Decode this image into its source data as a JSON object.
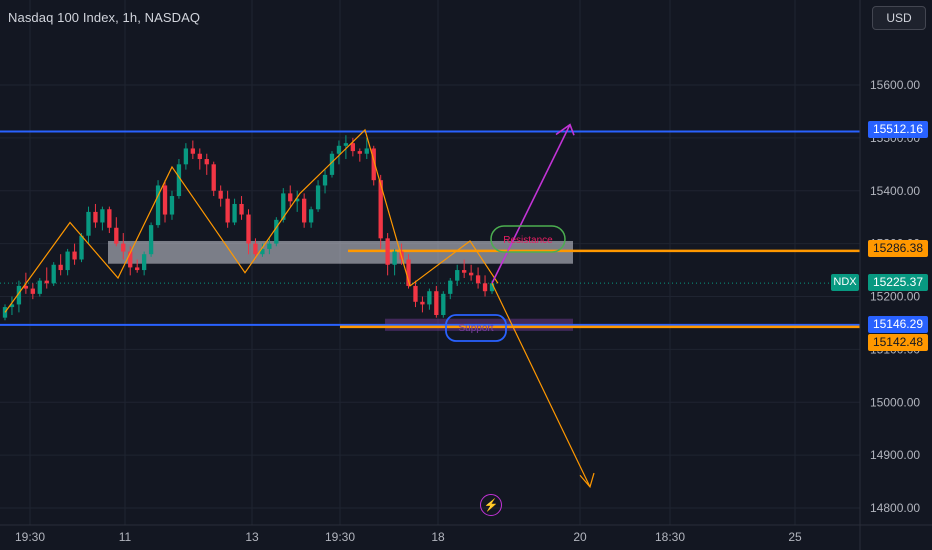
{
  "header": {
    "title": "Nasdaq 100 Index, 1h, NASDAQ",
    "currency": "USD"
  },
  "chart_data": {
    "type": "candlestick",
    "title": "Nasdaq 100 Index, 1h, NASDAQ",
    "ylim": [
      14760,
      15680
    ],
    "y_ticks": [
      14800,
      14900,
      15000,
      15100,
      15200,
      15300,
      15400,
      15500,
      15600
    ],
    "y_tick_labels": [
      "14800.00",
      "14900.00",
      "15000.00",
      "15100.00",
      "15200.00",
      "15300.00",
      "15400.00",
      "15500.00",
      "15600.00"
    ],
    "x_tick_labels": [
      "19:30",
      "11",
      "13",
      "19:30",
      "18",
      "20",
      "18:30",
      "25"
    ],
    "grid": true,
    "candles": [
      [
        15160,
        15185,
        15155,
        15180
      ],
      [
        15180,
        15200,
        15165,
        15185
      ],
      [
        15185,
        15230,
        15170,
        15220
      ],
      [
        15220,
        15245,
        15205,
        15215
      ],
      [
        15215,
        15225,
        15195,
        15205
      ],
      [
        15205,
        15235,
        15200,
        15230
      ],
      [
        15230,
        15255,
        15215,
        15225
      ],
      [
        15225,
        15265,
        15220,
        15260
      ],
      [
        15260,
        15280,
        15240,
        15250
      ],
      [
        15250,
        15290,
        15240,
        15285
      ],
      [
        15285,
        15300,
        15260,
        15270
      ],
      [
        15270,
        15320,
        15265,
        15315
      ],
      [
        15315,
        15370,
        15300,
        15360
      ],
      [
        15360,
        15375,
        15330,
        15340
      ],
      [
        15340,
        15370,
        15325,
        15365
      ],
      [
        15365,
        15370,
        15320,
        15330
      ],
      [
        15330,
        15350,
        15295,
        15300
      ],
      [
        15300,
        15320,
        15270,
        15285
      ],
      [
        15285,
        15295,
        15240,
        15255
      ],
      [
        15255,
        15270,
        15245,
        15250
      ],
      [
        15250,
        15285,
        15240,
        15280
      ],
      [
        15280,
        15340,
        15275,
        15335
      ],
      [
        15335,
        15420,
        15330,
        15410
      ],
      [
        15410,
        15420,
        15340,
        15355
      ],
      [
        15355,
        15400,
        15345,
        15390
      ],
      [
        15390,
        15460,
        15385,
        15450
      ],
      [
        15450,
        15490,
        15440,
        15480
      ],
      [
        15480,
        15495,
        15460,
        15470
      ],
      [
        15470,
        15480,
        15440,
        15460
      ],
      [
        15460,
        15470,
        15430,
        15450
      ],
      [
        15450,
        15455,
        15390,
        15400
      ],
      [
        15400,
        15410,
        15370,
        15385
      ],
      [
        15385,
        15400,
        15330,
        15340
      ],
      [
        15340,
        15385,
        15335,
        15375
      ],
      [
        15375,
        15390,
        15345,
        15355
      ],
      [
        15355,
        15365,
        15280,
        15300
      ],
      [
        15300,
        15310,
        15270,
        15280
      ],
      [
        15280,
        15300,
        15275,
        15290
      ],
      [
        15290,
        15310,
        15280,
        15300
      ],
      [
        15300,
        15350,
        15295,
        15345
      ],
      [
        15345,
        15405,
        15340,
        15395
      ],
      [
        15395,
        15410,
        15370,
        15380
      ],
      [
        15380,
        15400,
        15360,
        15385
      ],
      [
        15385,
        15395,
        15330,
        15340
      ],
      [
        15340,
        15370,
        15330,
        15365
      ],
      [
        15365,
        15420,
        15360,
        15410
      ],
      [
        15410,
        15440,
        15395,
        15430
      ],
      [
        15430,
        15475,
        15425,
        15470
      ],
      [
        15470,
        15495,
        15450,
        15485
      ],
      [
        15485,
        15505,
        15460,
        15490
      ],
      [
        15490,
        15500,
        15465,
        15475
      ],
      [
        15475,
        15480,
        15455,
        15470
      ],
      [
        15470,
        15500,
        15460,
        15480
      ],
      [
        15480,
        15485,
        15410,
        15420
      ],
      [
        15420,
        15430,
        15290,
        15310
      ],
      [
        15310,
        15320,
        15240,
        15260
      ],
      [
        15260,
        15290,
        15240,
        15285
      ],
      [
        15285,
        15300,
        15260,
        15270
      ],
      [
        15270,
        15280,
        15215,
        15220
      ],
      [
        15220,
        15230,
        15180,
        15190
      ],
      [
        15190,
        15200,
        15170,
        15185
      ],
      [
        15185,
        15215,
        15175,
        15210
      ],
      [
        15210,
        15220,
        15160,
        15165
      ],
      [
        15165,
        15210,
        15160,
        15205
      ],
      [
        15205,
        15235,
        15195,
        15230
      ],
      [
        15230,
        15260,
        15220,
        15250
      ],
      [
        15250,
        15270,
        15235,
        15245
      ],
      [
        15245,
        15260,
        15230,
        15240
      ],
      [
        15240,
        15255,
        15215,
        15225
      ],
      [
        15225,
        15240,
        15200,
        15210
      ],
      [
        15210,
        15230,
        15205,
        15225
      ]
    ],
    "horizontal_levels": [
      {
        "value": 15512.16,
        "label": "15512.16",
        "color": "#2962ff"
      },
      {
        "value": 15146.29,
        "label": "15146.29",
        "color": "#2962ff"
      },
      {
        "value": 15286.38,
        "label": "15286.38",
        "color": "#ff9800"
      },
      {
        "value": 15142.48,
        "label": "15142.48",
        "color": "#ff9800"
      }
    ],
    "current_price": {
      "symbol": "NDX",
      "value": 15225.37,
      "label": "15225.37",
      "color": "#089981"
    },
    "annotations": {
      "resistance_label": "Resistance",
      "support_label": "Support"
    },
    "colors": {
      "up": "#089981",
      "down": "#f23645",
      "zigzag": "#ff9800",
      "bull_projection": "#c233d6",
      "bear_projection": "#ff9800",
      "background": "#131722",
      "grid": "#1f2431"
    }
  }
}
